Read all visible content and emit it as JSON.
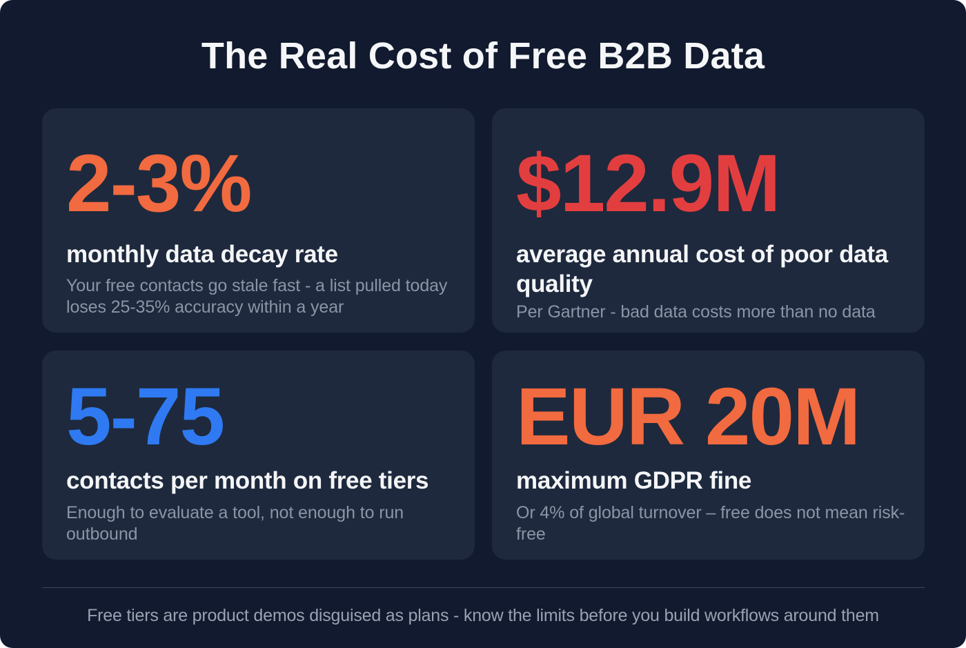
{
  "title": "The Real Cost of Free B2B Data",
  "colors": {
    "background": "#111a2e",
    "card": "#1e293d",
    "orange": "#f26a3f",
    "red": "#e33e3f",
    "blue": "#2f7af2",
    "label": "#f4f5f7",
    "description": "#8c95a6",
    "divider": "#3f485a",
    "footer": "#9aa2b2"
  },
  "cards": [
    {
      "stat": "2-3%",
      "stat_color": "#f26a3f",
      "label": "monthly data decay rate",
      "description": "Your free contacts go stale fast - a list pulled today loses 25-35% accuracy within a year"
    },
    {
      "stat": "$12.9M",
      "stat_color": "#e33e3f",
      "label": "average annual cost of poor data quality",
      "description": "Per Gartner - bad data costs more than no data"
    },
    {
      "stat": "5-75",
      "stat_color": "#2f7af2",
      "label": "contacts per month on free tiers",
      "description": "Enough to evaluate a tool, not enough to run outbound"
    },
    {
      "stat": "EUR 20M",
      "stat_color": "#f26a3f",
      "label": "maximum GDPR fine",
      "description": "Or 4% of global turnover – free does not mean risk-free"
    }
  ],
  "footer": "Free tiers are product demos disguised as plans - know the limits before you build workflows around them"
}
